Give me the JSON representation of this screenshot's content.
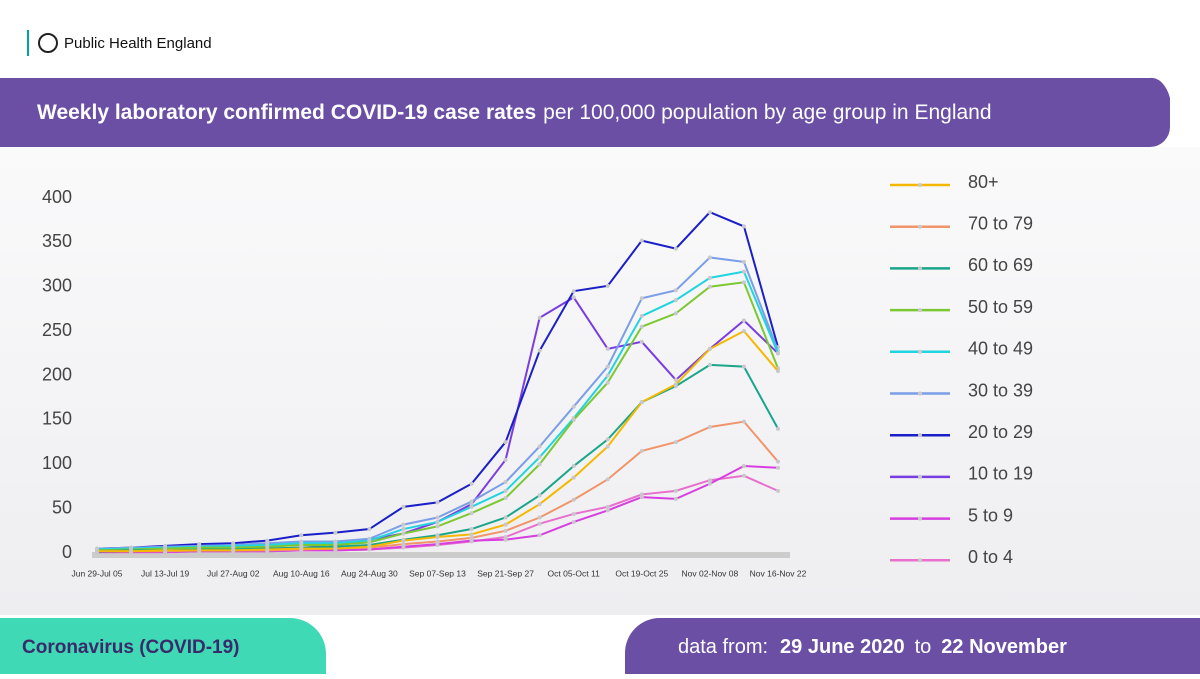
{
  "header": {
    "org": "Public Health England"
  },
  "banner": {
    "title_bold": "Weekly laboratory confirmed COVID-19 case rates",
    "title_rest": "per 100,000 population by age group in England"
  },
  "footer": {
    "left": "Coronavirus (COVID-19)",
    "data_from": "data from:",
    "start": "29 June 2020",
    "to": "to",
    "end": "22 November"
  },
  "chart_data": {
    "type": "line",
    "categories": [
      "Jun 29-Jul 05",
      null,
      "Jul 13-Jul 19",
      null,
      "Jul 27-Aug 02",
      null,
      "Aug 10-Aug 16",
      null,
      "Aug 24-Aug 30",
      null,
      "Sep 07-Sep 13",
      null,
      "Sep 21-Sep 27",
      null,
      "Oct 05-Oct 11",
      null,
      "Oct 19-Oct 25",
      null,
      "Nov 02-Nov 08",
      null,
      "Nov 16-Nov 22"
    ],
    "ylim": [
      0,
      400
    ],
    "yticks": [
      0,
      50,
      100,
      150,
      200,
      250,
      300,
      350,
      400
    ],
    "series": [
      {
        "name": "80+",
        "color": "#f5b800",
        "values": [
          2,
          2,
          3,
          3,
          3,
          4,
          5,
          5,
          7,
          14,
          18,
          21,
          32,
          55,
          85,
          120,
          170,
          190,
          230,
          250,
          205
        ]
      },
      {
        "name": "70 to 79",
        "color": "#f0956a",
        "values": [
          2,
          2,
          2,
          3,
          3,
          3,
          4,
          5,
          6,
          10,
          13,
          17,
          25,
          40,
          60,
          83,
          115,
          125,
          142,
          148,
          103
        ]
      },
      {
        "name": "60 to 69",
        "color": "#1aa68a",
        "values": [
          2,
          3,
          3,
          4,
          4,
          5,
          6,
          7,
          9,
          15,
          20,
          27,
          40,
          65,
          98,
          128,
          170,
          188,
          212,
          210,
          140
        ]
      },
      {
        "name": "50 to 59",
        "color": "#7cc832",
        "values": [
          3,
          4,
          5,
          6,
          6,
          7,
          9,
          9,
          12,
          22,
          30,
          45,
          62,
          100,
          150,
          192,
          255,
          270,
          300,
          305,
          208
        ]
      },
      {
        "name": "40 to 49",
        "color": "#22d4e0",
        "values": [
          4,
          5,
          6,
          7,
          8,
          9,
          11,
          11,
          14,
          27,
          35,
          52,
          70,
          108,
          152,
          200,
          267,
          285,
          310,
          317,
          225
        ]
      },
      {
        "name": "30 to 39",
        "color": "#7a9ee8",
        "values": [
          5,
          6,
          7,
          8,
          9,
          11,
          13,
          13,
          16,
          32,
          40,
          58,
          80,
          120,
          165,
          210,
          287,
          296,
          333,
          328,
          228
        ]
      },
      {
        "name": "20 to 29",
        "color": "#1a1fc8",
        "values": [
          5,
          6,
          8,
          10,
          11,
          14,
          20,
          23,
          27,
          52,
          57,
          78,
          125,
          228,
          295,
          301,
          352,
          343,
          384,
          368,
          232
        ]
      },
      {
        "name": "10 to 19",
        "color": "#7a3ee0",
        "values": [
          1,
          2,
          3,
          3,
          4,
          5,
          6,
          8,
          15,
          22,
          35,
          55,
          105,
          265,
          288,
          230,
          238,
          195,
          230,
          262,
          225
        ]
      },
      {
        "name": "5 to 9",
        "color": "#d63ee0",
        "values": [
          1,
          1,
          1,
          2,
          2,
          2,
          3,
          3,
          4,
          7,
          10,
          14,
          15,
          20,
          35,
          48,
          63,
          61,
          78,
          98,
          96
        ]
      },
      {
        "name": "0 to 4",
        "color": "#e870cc",
        "values": [
          1,
          1,
          1,
          2,
          2,
          2,
          3,
          3,
          4,
          6,
          9,
          13,
          18,
          33,
          44,
          52,
          66,
          70,
          82,
          87,
          70
        ]
      }
    ]
  }
}
